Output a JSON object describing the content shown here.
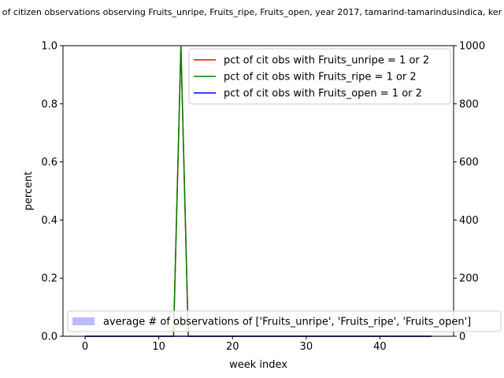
{
  "chart_data": {
    "type": "line",
    "title": "of citizen observations observing Fruits_unripe, Fruits_ripe, Fruits_open, year 2017, tamarind-tamarindusindica, ker",
    "xlabel": "week index",
    "ylabel": "percent",
    "xlim": [
      -3,
      50
    ],
    "ylim": [
      0,
      1
    ],
    "y2lim": [
      0,
      1000
    ],
    "xticks": [
      0,
      10,
      20,
      30,
      40
    ],
    "xtick_labels": [
      "0",
      "10",
      "20",
      "30",
      "40"
    ],
    "yticks": [
      0,
      0.2,
      0.4,
      0.6,
      0.8,
      1.0
    ],
    "ytick_labels": [
      "0.0",
      "0.2",
      "0.4",
      "0.6",
      "0.8",
      "1.0"
    ],
    "y2ticks": [
      0,
      200,
      400,
      600,
      800,
      1000
    ],
    "y2tick_labels": [
      "0",
      "200",
      "400",
      "600",
      "800",
      "1000"
    ],
    "grid": false,
    "legend_top": "upper right",
    "legend_bottom": "lower right",
    "series": [
      {
        "name": "pct of cit obs with Fruits_unripe = 1 or 2",
        "color": "#ff0000",
        "x": [
          0,
          12,
          13,
          14,
          47
        ],
        "y": [
          0,
          0,
          1,
          0,
          0
        ]
      },
      {
        "name": "pct of cit obs with Fruits_ripe = 1 or 2",
        "color": "#008000",
        "x": [
          0,
          12,
          13,
          14,
          47
        ],
        "y": [
          0,
          0,
          1,
          0,
          0
        ]
      },
      {
        "name": "pct of cit obs with Fruits_open = 1 or 2",
        "color": "#0000ff",
        "x": [
          0,
          47
        ],
        "y": [
          0,
          0
        ]
      }
    ],
    "bar_series": {
      "name": "average # of observations of ['Fruits_unripe', 'Fruits_ripe', 'Fruits_open']",
      "color": "#bbbbff",
      "x": [
        0,
        47
      ],
      "y": [
        0,
        0
      ]
    }
  }
}
